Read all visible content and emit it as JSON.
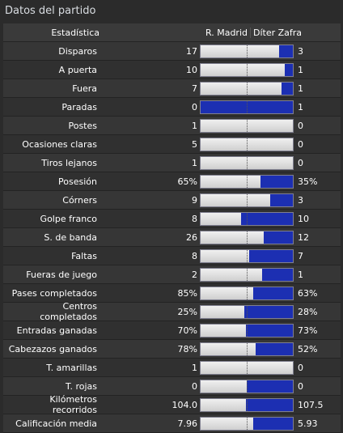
{
  "panel": {
    "title": "Datos del partido"
  },
  "header": {
    "stat_label": "Estadística",
    "home_team": "R. Madrid",
    "away_team": "Díter Zafra"
  },
  "colors": {
    "home_bar": "#e6e6e6",
    "away_bar": "#1c2fb2"
  },
  "stats": [
    {
      "label": "Disparos",
      "home": "17",
      "away": "3",
      "home_share": 0.85
    },
    {
      "label": "A puerta",
      "home": "10",
      "away": "1",
      "home_share": 0.91
    },
    {
      "label": "Fuera",
      "home": "7",
      "away": "1",
      "home_share": 0.88
    },
    {
      "label": "Paradas",
      "home": "0",
      "away": "1",
      "home_share": 0.0
    },
    {
      "label": "Postes",
      "home": "1",
      "away": "0",
      "home_share": 1.0
    },
    {
      "label": "Ocasiones claras",
      "home": "5",
      "away": "0",
      "home_share": 1.0
    },
    {
      "label": "Tiros lejanos",
      "home": "1",
      "away": "0",
      "home_share": 1.0
    },
    {
      "label": "Posesión",
      "home": "65%",
      "away": "35%",
      "home_share": 0.65
    },
    {
      "label": "Córners",
      "home": "9",
      "away": "3",
      "home_share": 0.75
    },
    {
      "label": "Golpe franco",
      "home": "8",
      "away": "10",
      "home_share": 0.44
    },
    {
      "label": "S. de banda",
      "home": "26",
      "away": "12",
      "home_share": 0.68
    },
    {
      "label": "Faltas",
      "home": "8",
      "away": "7",
      "home_share": 0.53
    },
    {
      "label": "Fueras de juego",
      "home": "2",
      "away": "1",
      "home_share": 0.67
    },
    {
      "label": "Pases completados",
      "home": "85%",
      "away": "63%",
      "home_share": 0.57
    },
    {
      "label": "Centros completados",
      "home": "25%",
      "away": "28%",
      "home_share": 0.47
    },
    {
      "label": "Entradas ganadas",
      "home": "70%",
      "away": "73%",
      "home_share": 0.49
    },
    {
      "label": "Cabezazos ganados",
      "home": "78%",
      "away": "52%",
      "home_share": 0.6
    },
    {
      "label": "T. amarillas",
      "home": "1",
      "away": "0",
      "home_share": 1.0
    },
    {
      "label": "T. rojas",
      "home": "0",
      "away": "0",
      "home_share": 0.5
    },
    {
      "label": "Kilómetros recorridos",
      "home": "104.0",
      "away": "107.5",
      "home_share": 0.49
    },
    {
      "label": "Calificación media",
      "home": "7.96",
      "away": "5.93",
      "home_share": 0.57
    }
  ]
}
